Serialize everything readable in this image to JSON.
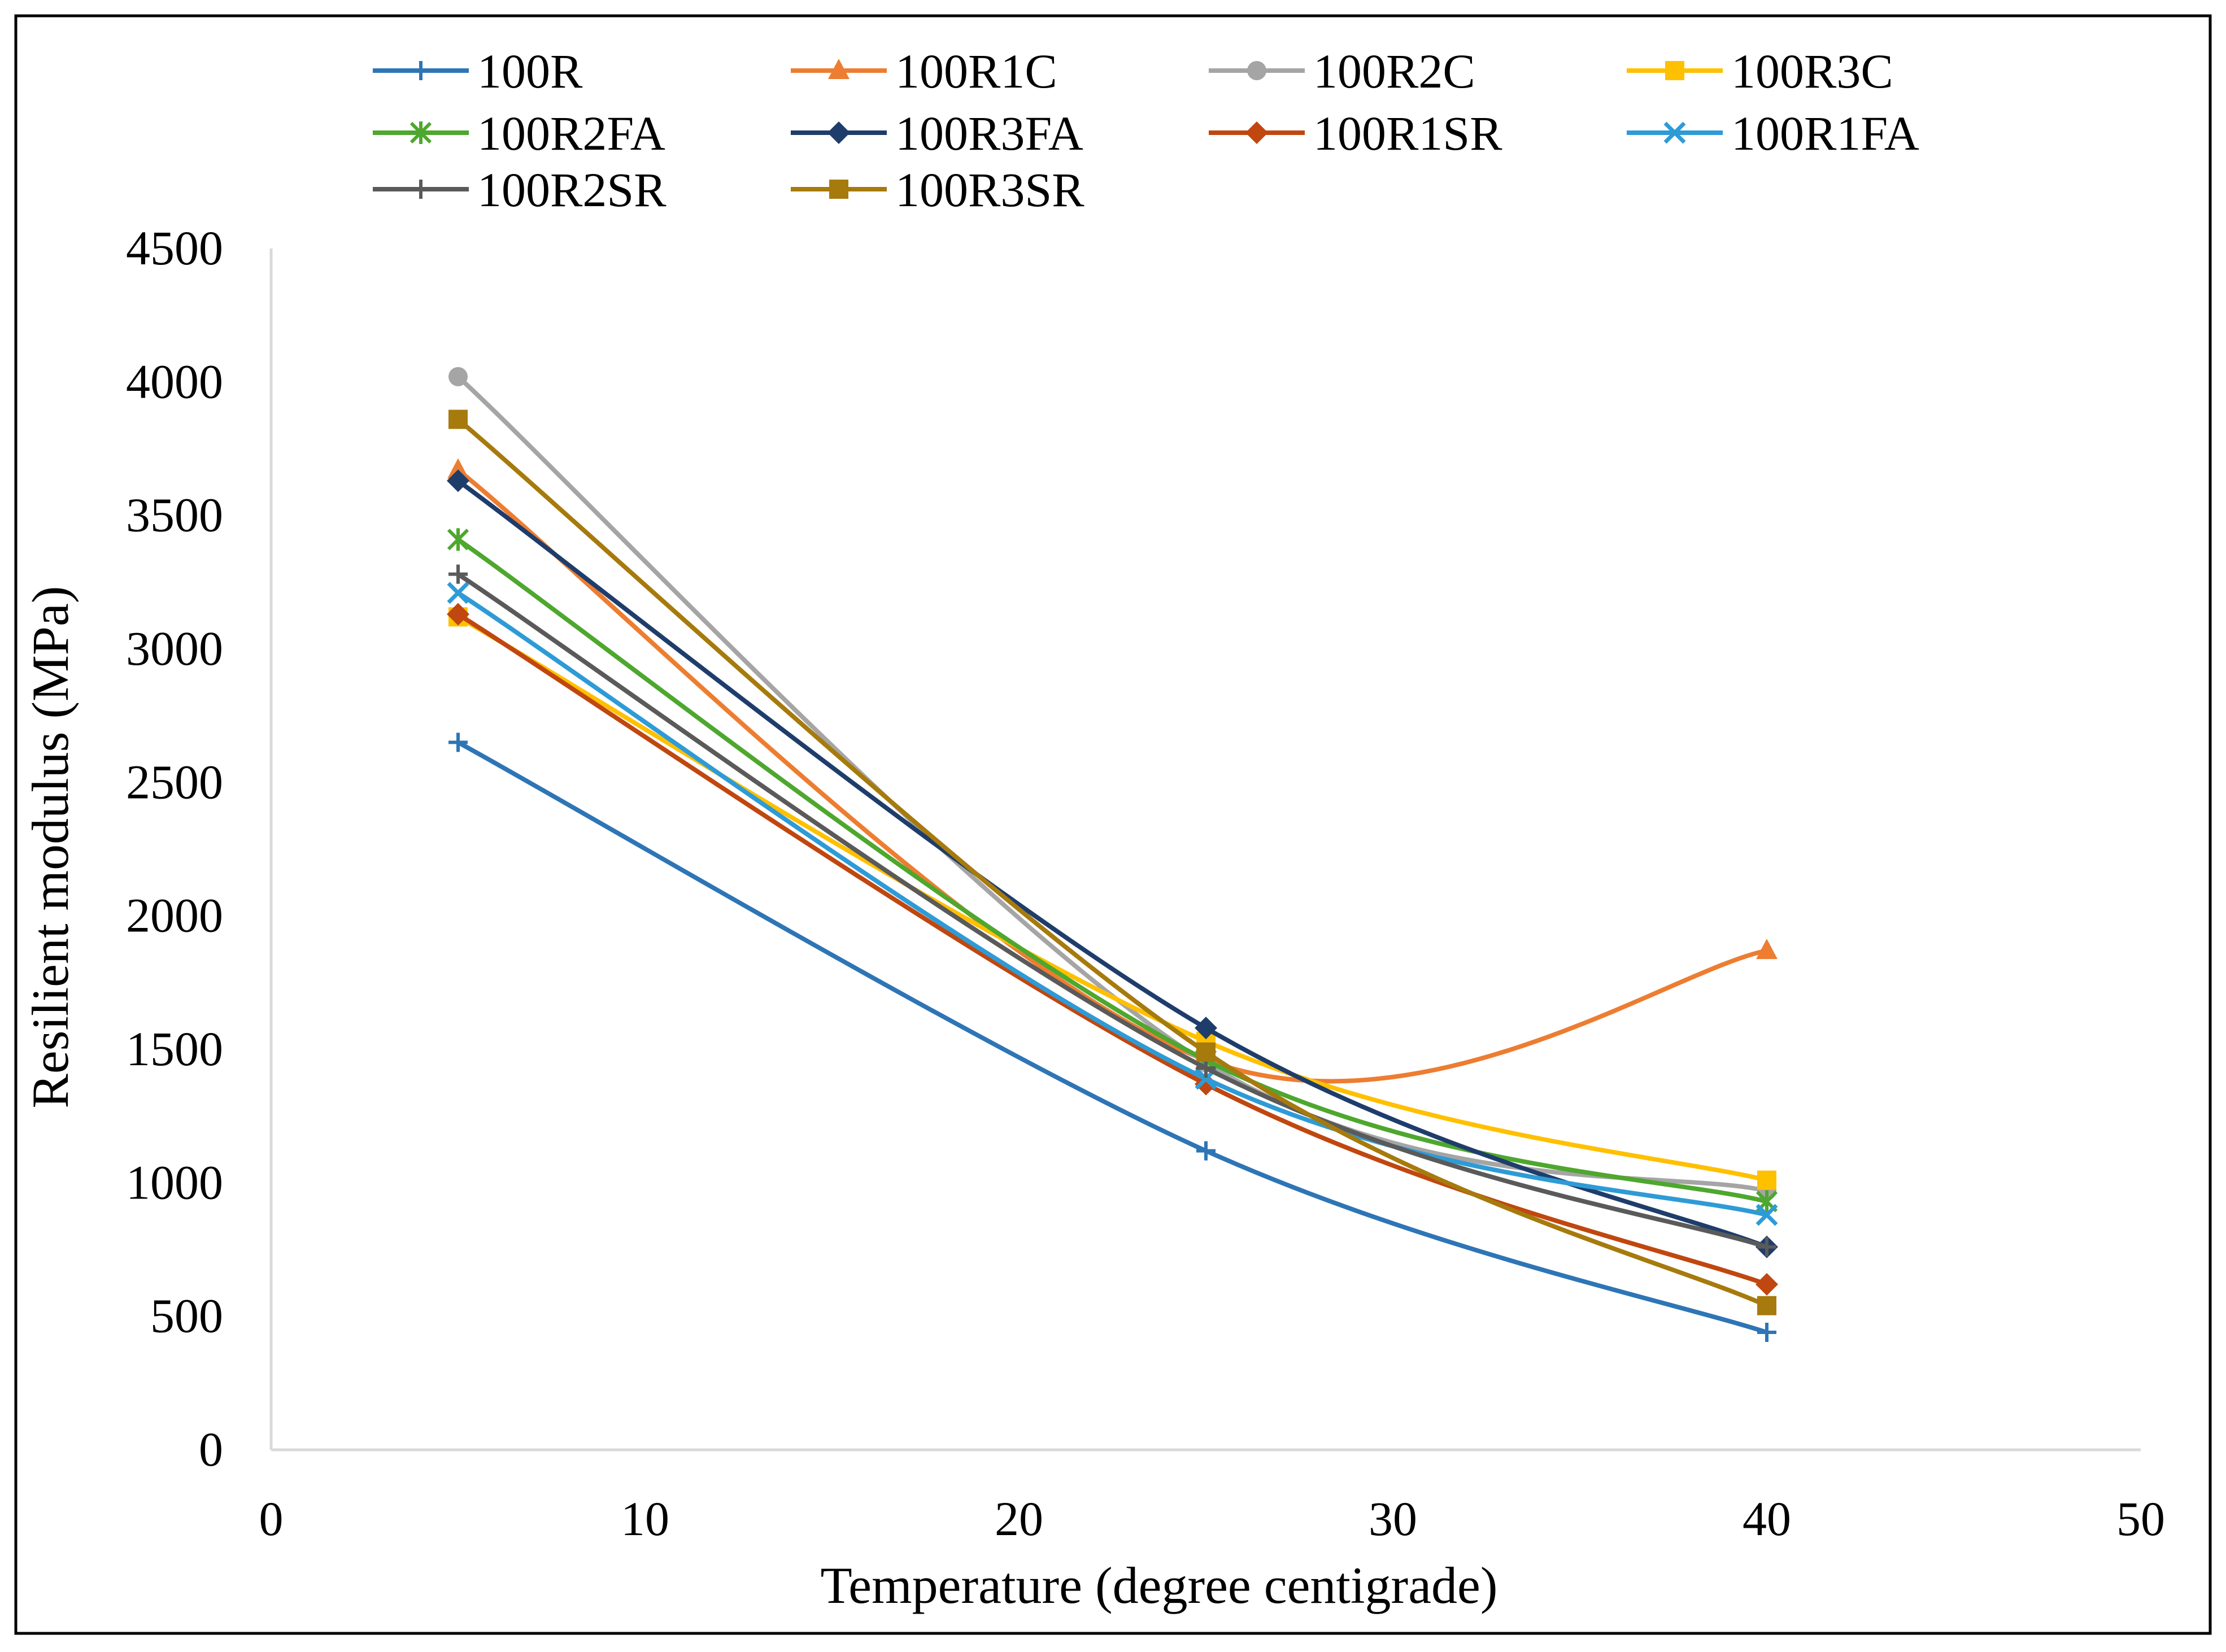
{
  "chart_data": {
    "type": "line",
    "title": "",
    "xlabel": "Temperature (degree centigrade)",
    "ylabel": "Resilient modulus (MPa)",
    "xlim": [
      0,
      50
    ],
    "ylim": [
      0,
      4500
    ],
    "xticks": [
      0,
      10,
      20,
      30,
      40,
      50
    ],
    "yticks": [
      0,
      500,
      1000,
      1500,
      2000,
      2500,
      3000,
      3500,
      4000,
      4500
    ],
    "grid": false,
    "legend_position": "top",
    "x": [
      5,
      25,
      40
    ],
    "series": [
      {
        "name": "100R",
        "values": [
          2650,
          1120,
          440
        ],
        "color": "#2e75b6",
        "marker": "plus"
      },
      {
        "name": "100R1C",
        "values": [
          3670,
          1460,
          1870
        ],
        "color": "#ed7d31",
        "marker": "triangle"
      },
      {
        "name": "100R2C",
        "values": [
          4020,
          1450,
          970
        ],
        "color": "#a5a5a5",
        "marker": "circle"
      },
      {
        "name": "100R3C",
        "values": [
          3120,
          1530,
          1010
        ],
        "color": "#ffc000",
        "marker": "square"
      },
      {
        "name": "100R2FA",
        "values": [
          3410,
          1460,
          930
        ],
        "color": "#4ea72e",
        "marker": "star"
      },
      {
        "name": "100R3FA",
        "values": [
          3630,
          1580,
          760
        ],
        "color": "#1f3d6b",
        "marker": "diamond"
      },
      {
        "name": "100R1SR",
        "values": [
          3130,
          1370,
          620
        ],
        "color": "#c0470f",
        "marker": "diamond"
      },
      {
        "name": "100R1FA",
        "values": [
          3210,
          1390,
          880
        ],
        "color": "#2e9bd6",
        "marker": "x"
      },
      {
        "name": "100R2SR",
        "values": [
          3280,
          1430,
          760
        ],
        "color": "#5a5a5a",
        "marker": "plus"
      },
      {
        "name": "100R3SR",
        "values": [
          3860,
          1490,
          540
        ],
        "color": "#a67a0c",
        "marker": "square"
      }
    ]
  }
}
